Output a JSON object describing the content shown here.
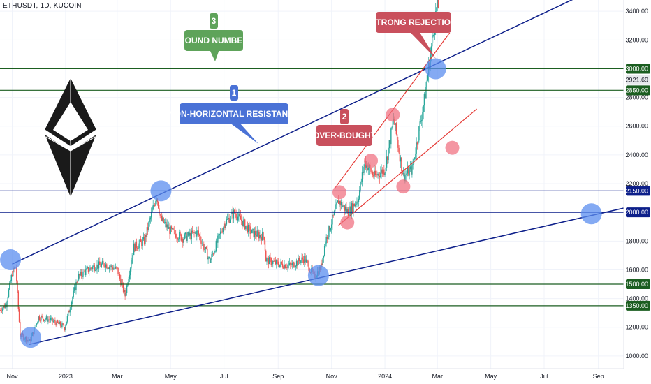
{
  "symbol": "ETHUSDT, 1D, KUCOIN",
  "colors": {
    "up": "#26a69a",
    "down": "#ef5350",
    "blue_line": "#0d1f8a",
    "green_line": "#1b5e20",
    "red_line": "#e53935",
    "blue_marker": "#5b8def",
    "red_marker": "#f06a7a",
    "callout_blue": "#4a72d6",
    "callout_green": "#5ea35a",
    "callout_red": "#c9505d"
  },
  "chart_data": {
    "type": "candlestick",
    "price_axis": {
      "range": [
        980,
        3430
      ],
      "ticks": [
        1000,
        1200,
        1400,
        1600,
        1800,
        2000,
        2200,
        2400,
        2600,
        2800,
        3000,
        3200,
        3400
      ]
    },
    "time_axis": {
      "range": [
        "2022-10-18",
        "2024-09-30"
      ],
      "ticks": [
        {
          "date": "2022-11-01",
          "label": "Nov"
        },
        {
          "date": "2023-01-01",
          "label": "2023"
        },
        {
          "date": "2023-03-01",
          "label": "Mar"
        },
        {
          "date": "2023-05-01",
          "label": "May"
        },
        {
          "date": "2023-07-01",
          "label": "Jul"
        },
        {
          "date": "2023-09-01",
          "label": "Sep"
        },
        {
          "date": "2023-11-01",
          "label": "Nov"
        },
        {
          "date": "2024-01-01",
          "label": "2024"
        },
        {
          "date": "2024-03-01",
          "label": "Mar"
        },
        {
          "date": "2024-05-01",
          "label": "May"
        },
        {
          "date": "2024-07-01",
          "label": "Jul"
        },
        {
          "date": "2024-09-01",
          "label": "Sep"
        }
      ]
    },
    "price_path": [
      [
        "2022-10-18",
        1320
      ],
      [
        "2022-10-25",
        1360
      ],
      [
        "2022-11-01",
        1580
      ],
      [
        "2022-11-05",
        1620
      ],
      [
        "2022-11-08",
        1330
      ],
      [
        "2022-11-10",
        1150
      ],
      [
        "2022-11-21",
        1100
      ],
      [
        "2022-12-01",
        1270
      ],
      [
        "2022-12-15",
        1250
      ],
      [
        "2022-12-31",
        1200
      ],
      [
        "2023-01-15",
        1550
      ],
      [
        "2023-02-01",
        1620
      ],
      [
        "2023-02-15",
        1640
      ],
      [
        "2023-03-01",
        1600
      ],
      [
        "2023-03-10",
        1420
      ],
      [
        "2023-03-20",
        1760
      ],
      [
        "2023-04-01",
        1800
      ],
      [
        "2023-04-15",
        2120
      ],
      [
        "2023-04-20",
        1950
      ],
      [
        "2023-05-01",
        1870
      ],
      [
        "2023-05-15",
        1820
      ],
      [
        "2023-06-01",
        1860
      ],
      [
        "2023-06-15",
        1660
      ],
      [
        "2023-07-01",
        1920
      ],
      [
        "2023-07-13",
        2000
      ],
      [
        "2023-08-01",
        1860
      ],
      [
        "2023-08-16",
        1830
      ],
      [
        "2023-08-18",
        1670
      ],
      [
        "2023-09-01",
        1640
      ],
      [
        "2023-09-15",
        1630
      ],
      [
        "2023-10-01",
        1680
      ],
      [
        "2023-10-12",
        1550
      ],
      [
        "2023-10-20",
        1620
      ],
      [
        "2023-10-25",
        1800
      ],
      [
        "2023-11-09",
        2080
      ],
      [
        "2023-11-20",
        2000
      ],
      [
        "2023-12-01",
        2090
      ],
      [
        "2023-12-09",
        2350
      ],
      [
        "2023-12-20",
        2250
      ],
      [
        "2024-01-01",
        2300
      ],
      [
        "2024-01-11",
        2650
      ],
      [
        "2024-01-22",
        2250
      ],
      [
        "2024-02-01",
        2300
      ],
      [
        "2024-02-15",
        2780
      ],
      [
        "2024-02-29",
        3420
      ],
      [
        "2024-03-02",
        3430
      ]
    ],
    "horizontal_levels": [
      {
        "price": 3000,
        "label": "3000.00",
        "color": "green"
      },
      {
        "price": 2850,
        "label": "2850.00",
        "color": "green"
      },
      {
        "price": 2150,
        "label": "2150.00",
        "color": "blue"
      },
      {
        "price": 2000,
        "label": "2000.00",
        "color": "blue"
      },
      {
        "price": 1500,
        "label": "1500.00",
        "color": "green"
      },
      {
        "price": 1350,
        "label": "1350.00",
        "color": "green"
      }
    ],
    "current_price": {
      "value": 2921.69,
      "label": "2921.69"
    },
    "trendlines": [
      {
        "name": "upper-resistance",
        "color": "blue",
        "from": [
          "2022-11-01",
          1640
        ],
        "to": [
          "2024-09-30",
          3650
        ]
      },
      {
        "name": "lower-support",
        "color": "blue",
        "from": [
          "2022-11-20",
          1080
        ],
        "to": [
          "2024-09-30",
          2030
        ]
      },
      {
        "name": "channel-top",
        "color": "red",
        "from": [
          "2023-11-05",
          2170
        ],
        "to": [
          "2024-03-15",
          3250
        ]
      },
      {
        "name": "channel-bottom",
        "color": "red",
        "from": [
          "2023-11-09",
          1910
        ],
        "to": [
          "2024-04-15",
          2720
        ]
      }
    ],
    "markers": [
      {
        "color": "blue",
        "date": "2022-10-30",
        "price": 1670
      },
      {
        "color": "blue",
        "date": "2022-11-22",
        "price": 1130
      },
      {
        "color": "blue",
        "date": "2023-04-20",
        "price": 2150
      },
      {
        "color": "blue",
        "date": "2023-10-17",
        "price": 1560
      },
      {
        "color": "blue",
        "date": "2024-02-28",
        "price": 3000
      },
      {
        "color": "blue",
        "date": "2024-08-24",
        "price": 1990
      },
      {
        "color": "red",
        "date": "2023-11-10",
        "price": 2140
      },
      {
        "color": "red",
        "date": "2023-11-19",
        "price": 1930
      },
      {
        "color": "red",
        "date": "2023-12-16",
        "price": 2360
      },
      {
        "color": "red",
        "date": "2024-01-10",
        "price": 2680
      },
      {
        "color": "red",
        "date": "2024-01-22",
        "price": 2180
      },
      {
        "color": "red",
        "date": "2024-03-18",
        "price": 2450
      }
    ],
    "callouts": [
      {
        "number": "1",
        "text": "NON-HORIZONTAL RESISTANCE",
        "color": "blue"
      },
      {
        "number": "2",
        "text": "OVER-BOUGHT",
        "color": "red"
      },
      {
        "number": "3",
        "text": "ROUND NUMBER",
        "color": "green"
      },
      {
        "number": "",
        "text": "STRONG REJECTION",
        "color": "red"
      }
    ]
  }
}
